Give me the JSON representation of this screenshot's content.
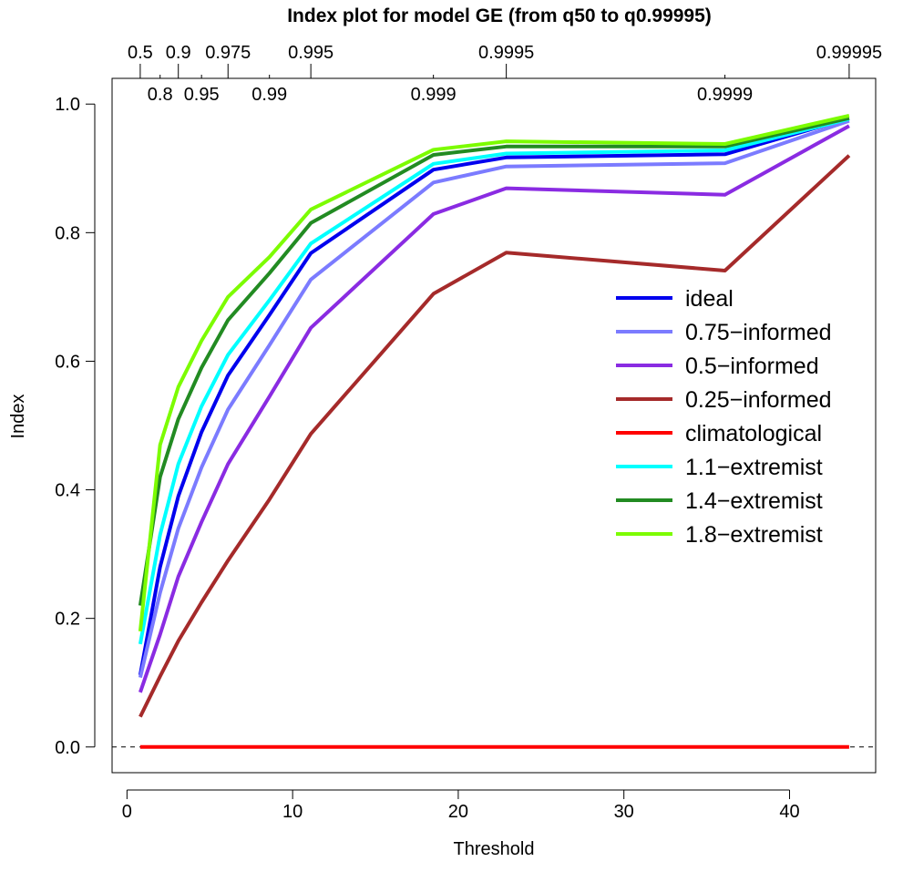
{
  "chart_data": {
    "type": "line",
    "title": "Index plot for model GE (from q50 to q0.99995)",
    "xlabel": "Threshold",
    "ylabel": "Index",
    "xlim": [
      -0.9,
      45.2
    ],
    "ylim": [
      -0.04,
      1.04
    ],
    "x_ticks": [
      0,
      10,
      20,
      30,
      40
    ],
    "y_ticks": [
      0.0,
      0.2,
      0.4,
      0.6,
      0.8,
      1.0
    ],
    "x_tick_labels": [
      "0",
      "10",
      "20",
      "30",
      "40"
    ],
    "y_tick_labels": [
      "0.0",
      "0.2",
      "0.4",
      "0.6",
      "0.8",
      "1.0"
    ],
    "top_axis": {
      "ticks": [
        {
          "x": 0.8,
          "label": "0.5",
          "row": 1
        },
        {
          "x": 2.0,
          "label": "0.8",
          "row": 2
        },
        {
          "x": 3.1,
          "label": "0.9",
          "row": 1
        },
        {
          "x": 4.5,
          "label": "0.95",
          "row": 2
        },
        {
          "x": 6.1,
          "label": "0.975",
          "row": 1
        },
        {
          "x": 8.6,
          "label": "0.99",
          "row": 2
        },
        {
          "x": 11.1,
          "label": "0.995",
          "row": 1
        },
        {
          "x": 18.5,
          "label": "0.999",
          "row": 2
        },
        {
          "x": 22.9,
          "label": "0.9995",
          "row": 1
        },
        {
          "x": 36.1,
          "label": "0.9999",
          "row": 2
        },
        {
          "x": 43.6,
          "label": "0.99995",
          "row": 1
        }
      ]
    },
    "reference_line": {
      "y": 0,
      "style": "dashed"
    },
    "x": [
      0.8,
      2.0,
      3.1,
      4.5,
      6.1,
      8.6,
      11.1,
      18.5,
      22.9,
      36.1,
      43.6
    ],
    "series": [
      {
        "name": "ideal",
        "color": "#0000ee",
        "values": [
          0.112,
          0.28,
          0.39,
          0.49,
          0.578,
          0.672,
          0.768,
          0.898,
          0.917,
          0.922,
          0.978
        ]
      },
      {
        "name": "0.75−informed",
        "color": "#7b7bff",
        "values": [
          0.108,
          0.24,
          0.34,
          0.435,
          0.525,
          0.625,
          0.727,
          0.878,
          0.903,
          0.908,
          0.974
        ]
      },
      {
        "name": "0.5−informed",
        "color": "#8a2be2",
        "values": [
          0.085,
          0.175,
          0.265,
          0.35,
          0.44,
          0.545,
          0.652,
          0.829,
          0.869,
          0.859,
          0.966
        ]
      },
      {
        "name": "0.25−informed",
        "color": "#a52a2a",
        "values": [
          0.047,
          0.11,
          0.165,
          0.225,
          0.29,
          0.385,
          0.487,
          0.705,
          0.769,
          0.741,
          0.92
        ]
      },
      {
        "name": "climatological",
        "color": "#ff0000",
        "values": [
          0,
          0,
          0,
          0,
          0,
          0,
          0,
          0,
          0,
          0,
          0
        ]
      },
      {
        "name": "1.1−extremist",
        "color": "#00ffff",
        "values": [
          0.16,
          0.33,
          0.44,
          0.53,
          0.61,
          0.695,
          0.783,
          0.907,
          0.923,
          0.928,
          0.977
        ]
      },
      {
        "name": "1.4−extremist",
        "color": "#228b22",
        "values": [
          0.22,
          0.42,
          0.51,
          0.59,
          0.664,
          0.737,
          0.815,
          0.921,
          0.934,
          0.934,
          0.978
        ]
      },
      {
        "name": "1.8−extremist",
        "color": "#7cfc00",
        "values": [
          0.18,
          0.47,
          0.56,
          0.632,
          0.7,
          0.762,
          0.836,
          0.929,
          0.942,
          0.938,
          0.982
        ]
      }
    ],
    "legend_position": "right-middle",
    "grid": false
  }
}
